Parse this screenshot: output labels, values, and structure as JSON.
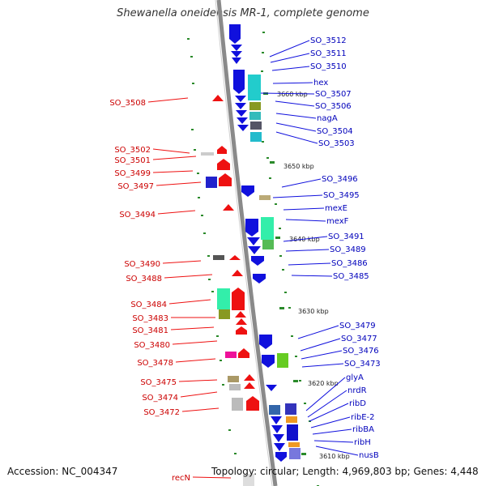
{
  "title": "Shewanella oneidensis MR-1, complete genome",
  "accession": "Accession: NC_004347",
  "topology": "Topology: circular; Length: 4,969,803 bp; Genes: 4,448",
  "colors": {
    "forward": "#1010dd",
    "reverse": "#ee1111",
    "backbone": "#8a8a8a",
    "ticks": "#2a8a2a"
  },
  "scale_ticks": [
    "3660 kbp",
    "3650 kbp",
    "3640 kbp",
    "3630 kbp",
    "3620 kbp",
    "3610 kbp"
  ],
  "forward_genes": [
    "SO_3512",
    "SO_3511",
    "SO_3510",
    "hex",
    "SO_3507",
    "SO_3506",
    "nagA",
    "SO_3504",
    "SO_3503",
    "SO_3496",
    "SO_3495",
    "mexE",
    "mexF",
    "SO_3491",
    "SO_3489",
    "SO_3486",
    "SO_3485",
    "SO_3479",
    "SO_3477",
    "SO_3476",
    "SO_3473",
    "glyA",
    "nrdR",
    "ribD",
    "ribE-2",
    "ribBA",
    "ribH",
    "nusB"
  ],
  "reverse_genes": [
    "SO_3508",
    "SO_3502",
    "SO_3501",
    "SO_3499",
    "SO_3497",
    "SO_3494",
    "SO_3490",
    "SO_3488",
    "SO_3484",
    "SO_3483",
    "SO_3481",
    "SO_3480",
    "SO_3478",
    "SO_3475",
    "SO_3474",
    "SO_3472",
    "recN"
  ]
}
